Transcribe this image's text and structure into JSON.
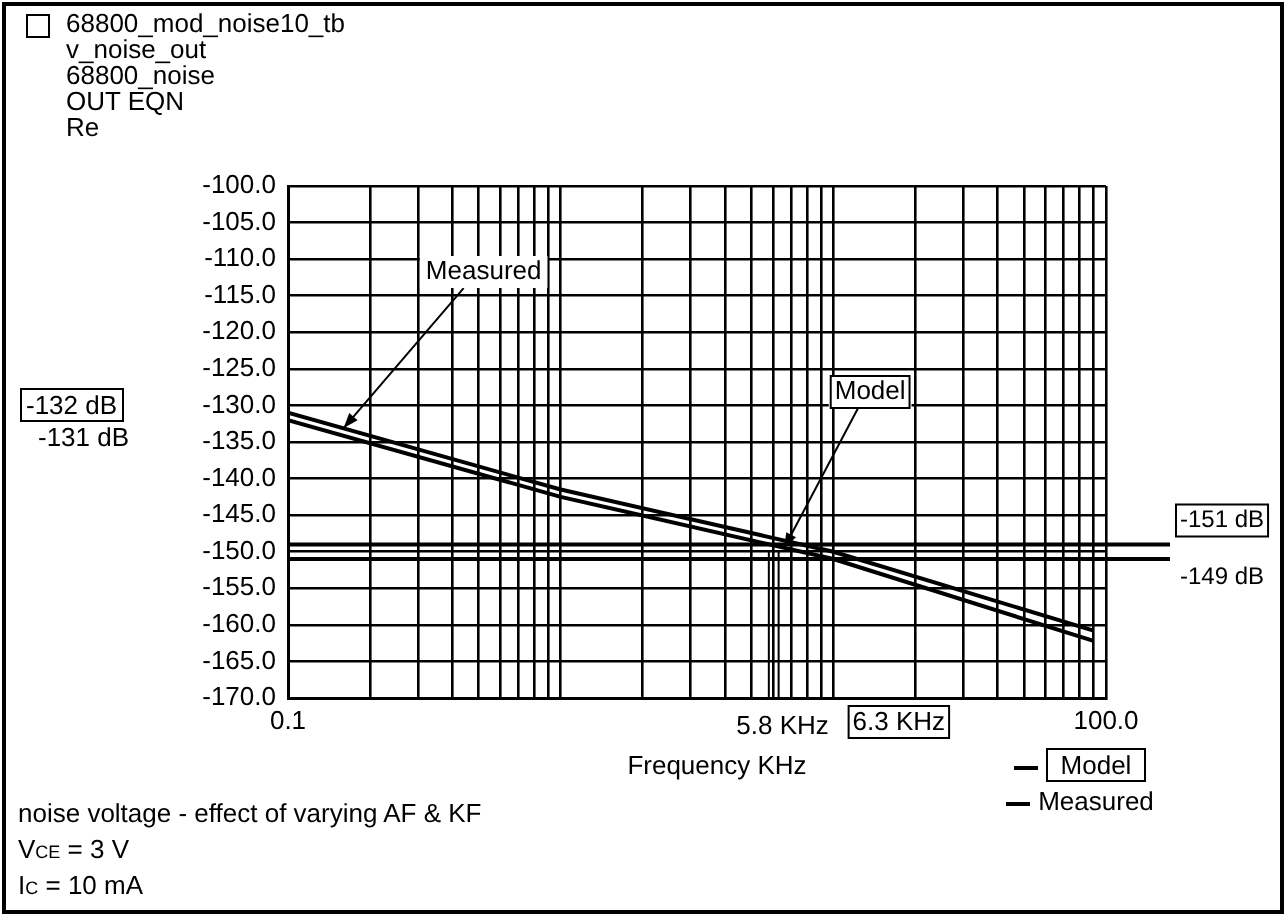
{
  "chart_data": {
    "type": "line",
    "title": "68800_mod_noise10_tb",
    "subtitle": "v_noise_out",
    "xlabel": "Frequency KHz",
    "log": "x",
    "grid": true,
    "legend": "bottom right",
    "marker": "none",
    "line_style": "solid",
    "xlim": [
      0.1,
      100
    ],
    "xticks": [
      0.1,
      {
        "value": 0.2,
        "label": null
      },
      {
        "value": 0.3,
        "label": null
      },
      {
        "value": 0.4,
        "label": null
      },
      {
        "value": 0.5,
        "label": null
      },
      {
        "value": 0.6,
        "label": null
      },
      {
        "value": 0.7,
        "label": null
      },
      {
        "value": 0.8,
        "label": null
      },
      {
        "value": 0.9,
        "label": null
      },
      {
        "value": 1,
        "label": null
      },
      {
        "value": 2,
        "label": null
      },
      {
        "value": 3,
        "label": null
      },
      {
        "value": 4,
        "label": null
      },
      {
        "value": 5,
        "label": null
      },
      {
        "value": 6,
        "label": null
      },
      {
        "value": 7,
        "label": null
      },
      {
        "value": 8,
        "label": null
      },
      {
        "value": 9,
        "label": null
      },
      {
        "value": 10,
        "label": null
      },
      {
        "value": 20,
        "label": null
      },
      {
        "value": 30,
        "label": null
      },
      {
        "value": 40,
        "label": null
      },
      {
        "value": 50,
        "label": null
      },
      {
        "value": 60,
        "label": null
      },
      {
        "value": 70,
        "label": null
      },
      {
        "value": 80,
        "label": null
      },
      {
        "value": 90,
        "label": null
      },
      {
        "value": 100,
        "label": "100.0"
      }
    ],
    "ylim": [
      -170,
      -100
    ],
    "yticks": [
      {
        "value": -100,
        "label": "-100.0"
      },
      {
        "value": -105,
        "label": "-105.0"
      },
      {
        "value": -110,
        "label": "-110.0"
      },
      {
        "value": -115,
        "label": "-115.0"
      },
      {
        "value": -120,
        "label": "-120.0"
      },
      {
        "value": -125,
        "label": "-125.0"
      },
      {
        "value": -130,
        "label": "-130.0"
      },
      {
        "value": -135,
        "label": "-135.0"
      },
      {
        "value": -140,
        "label": "-140.0"
      },
      {
        "value": -145,
        "label": "-145.0"
      },
      {
        "value": -150,
        "label": "-150.0"
      },
      {
        "value": -155,
        "label": "-155.0"
      },
      {
        "value": -160,
        "label": "-160.0"
      },
      {
        "value": -165,
        "label": "-165.0"
      },
      {
        "value": -170,
        "label": "-170.0"
      }
    ],
    "x": [
      0.1,
      1,
      10,
      90
    ],
    "series": [
      {
        "name": "Model",
        "color": "#000000",
        "values": [
          -132,
          -142.5,
          -151,
          -162.2
        ]
      },
      {
        "name": "Measured",
        "color": "#000000",
        "values": [
          -131,
          -141.5,
          -150,
          -160.8
        ]
      }
    ],
    "ref_lines": [
      {
        "axis": "x",
        "value": 5.8,
        "label": "5.8 KHz"
      },
      {
        "axis": "x",
        "value": 6.3,
        "label": "6.3 KHz"
      },
      {
        "axis": "y",
        "value": -149,
        "label": "-151 dB"
      },
      {
        "axis": "y",
        "value": -151,
        "label": "-149 dB"
      }
    ],
    "annotations": [
      "68800_noise",
      "OUT EQN",
      "Re",
      "-132 dB",
      "-131 dB",
      {
        "text": "Measured",
        "x": 0.16,
        "y": -133.1
      },
      {
        "text": "Model",
        "x": 6.6,
        "y": -149.5
      },
      "noise voltage - effect of varying AF & KF",
      "V$_{CE}$ = 3 V",
      "I$_{C}$ = 10 mA"
    ]
  }
}
